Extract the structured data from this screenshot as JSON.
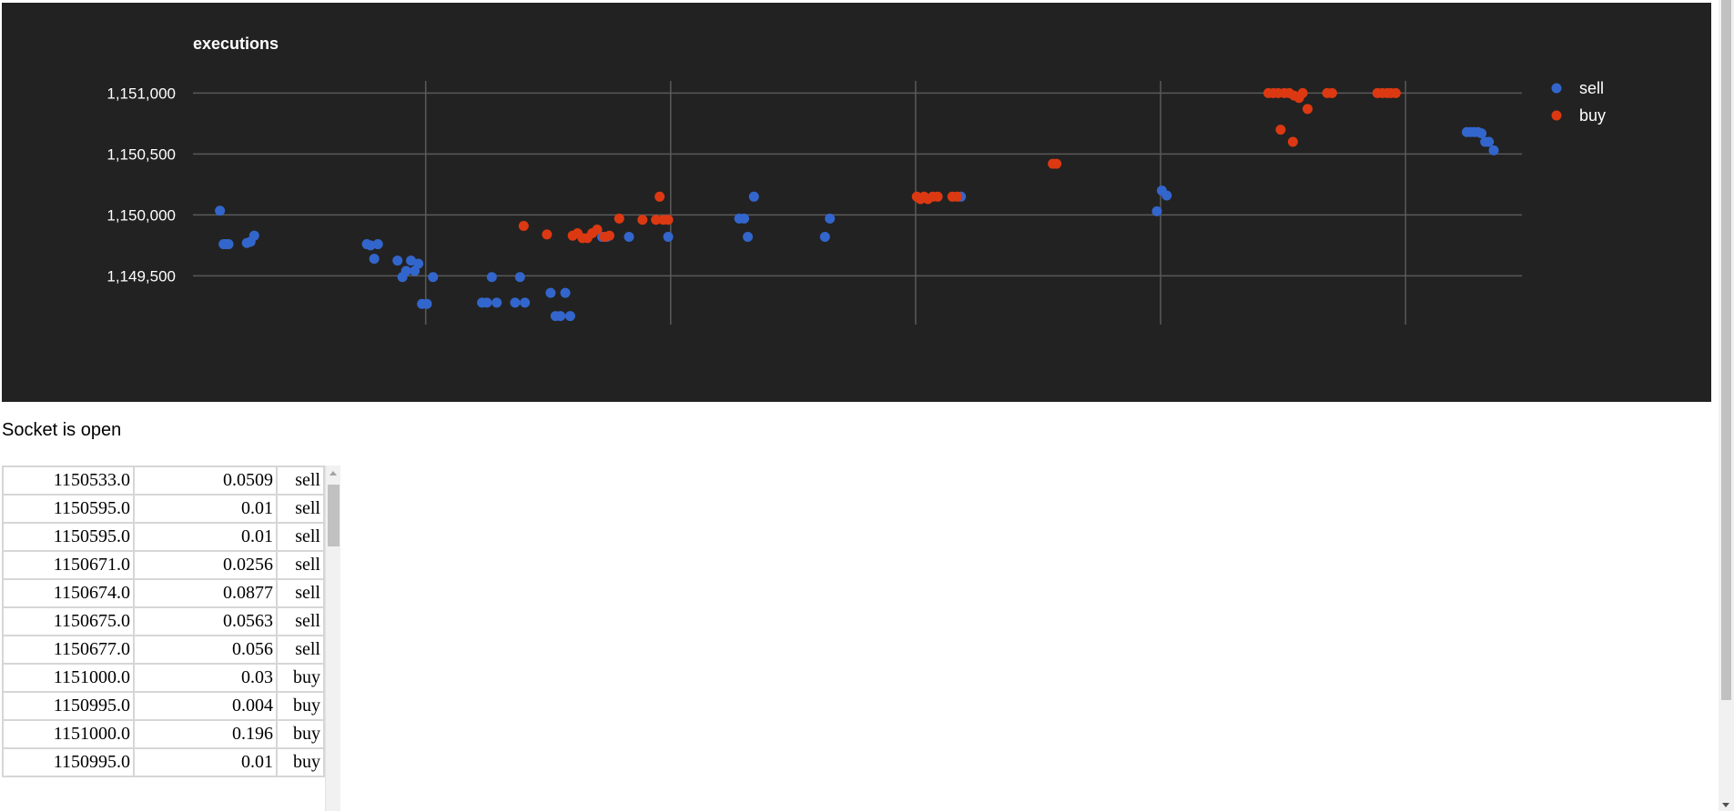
{
  "chart_data": {
    "type": "scatter",
    "title": "executions",
    "xlabel": "",
    "ylabel": "",
    "ylim": [
      1149100,
      1151100
    ],
    "yticks": [
      1149500,
      1150000,
      1150500,
      1151000
    ],
    "ytick_labels": [
      "1,149,500",
      "1,150,000",
      "1,150,500",
      "1,151,000"
    ],
    "xlim": [
      0,
      1085
    ],
    "xgrid": [
      190,
      390,
      590,
      790,
      990
    ],
    "grid": true,
    "legend": "top-right",
    "background": "#222222",
    "colors": {
      "sell": "#3366cc",
      "buy": "#dc3912"
    },
    "series": [
      {
        "name": "sell",
        "color": "#3366cc",
        "points": [
          [
            22,
            1150035
          ],
          [
            25,
            1149760
          ],
          [
            27,
            1149760
          ],
          [
            29,
            1149760
          ],
          [
            44,
            1149770
          ],
          [
            47,
            1149780
          ],
          [
            50,
            1149830
          ],
          [
            142,
            1149760
          ],
          [
            145,
            1149750
          ],
          [
            148,
            1149640
          ],
          [
            151,
            1149760
          ],
          [
            167,
            1149625
          ],
          [
            171,
            1149490
          ],
          [
            174,
            1149540
          ],
          [
            178,
            1149625
          ],
          [
            181,
            1149540
          ],
          [
            184,
            1149600
          ],
          [
            187,
            1149270
          ],
          [
            191,
            1149270
          ],
          [
            196,
            1149490
          ],
          [
            236,
            1149280
          ],
          [
            240,
            1149280
          ],
          [
            244,
            1149490
          ],
          [
            248,
            1149280
          ],
          [
            263,
            1149280
          ],
          [
            267,
            1149490
          ],
          [
            271,
            1149280
          ],
          [
            292,
            1149360
          ],
          [
            296,
            1149170
          ],
          [
            300,
            1149170
          ],
          [
            304,
            1149360
          ],
          [
            308,
            1149170
          ],
          [
            334,
            1149820
          ],
          [
            338,
            1149820
          ],
          [
            356,
            1149820
          ],
          [
            388,
            1149820
          ],
          [
            446,
            1149970
          ],
          [
            450,
            1149970
          ],
          [
            453,
            1149820
          ],
          [
            458,
            1150150
          ],
          [
            516,
            1149820
          ],
          [
            520,
            1149970
          ],
          [
            627,
            1150150
          ],
          [
            787,
            1150030
          ],
          [
            791,
            1150200
          ],
          [
            795,
            1150160
          ],
          [
            1040,
            1150680
          ],
          [
            1043,
            1150680
          ],
          [
            1046,
            1150680
          ],
          [
            1049,
            1150680
          ],
          [
            1052,
            1150670
          ],
          [
            1055,
            1150600
          ],
          [
            1058,
            1150600
          ],
          [
            1062,
            1150530
          ]
        ]
      },
      {
        "name": "buy",
        "color": "#dc3912",
        "points": [
          [
            270,
            1149910
          ],
          [
            289,
            1149840
          ],
          [
            310,
            1149830
          ],
          [
            314,
            1149850
          ],
          [
            318,
            1149810
          ],
          [
            322,
            1149810
          ],
          [
            326,
            1149850
          ],
          [
            330,
            1149880
          ],
          [
            336,
            1149820
          ],
          [
            340,
            1149830
          ],
          [
            348,
            1149970
          ],
          [
            367,
            1149960
          ],
          [
            378,
            1149960
          ],
          [
            381,
            1150150
          ],
          [
            384,
            1149960
          ],
          [
            388,
            1149960
          ],
          [
            591,
            1150150
          ],
          [
            594,
            1150130
          ],
          [
            597,
            1150150
          ],
          [
            600,
            1150130
          ],
          [
            604,
            1150150
          ],
          [
            608,
            1150150
          ],
          [
            620,
            1150150
          ],
          [
            624,
            1150150
          ],
          [
            702,
            1150420
          ],
          [
            705,
            1150420
          ],
          [
            878,
            1151000
          ],
          [
            882,
            1151000
          ],
          [
            886,
            1151000
          ],
          [
            888,
            1150700
          ],
          [
            891,
            1151000
          ],
          [
            895,
            1151000
          ],
          [
            898,
            1150600
          ],
          [
            899,
            1150980
          ],
          [
            903,
            1150960
          ],
          [
            906,
            1151000
          ],
          [
            910,
            1150870
          ],
          [
            926,
            1151000
          ],
          [
            930,
            1151000
          ],
          [
            967,
            1151000
          ],
          [
            971,
            1151000
          ],
          [
            975,
            1151000
          ],
          [
            978,
            1151000
          ],
          [
            982,
            1151000
          ]
        ]
      }
    ]
  },
  "status": {
    "text": "Socket is open"
  },
  "executions": [
    {
      "price": "1150533.0",
      "size": "0.0509",
      "side": "sell"
    },
    {
      "price": "1150595.0",
      "size": "0.01",
      "side": "sell"
    },
    {
      "price": "1150595.0",
      "size": "0.01",
      "side": "sell"
    },
    {
      "price": "1150671.0",
      "size": "0.0256",
      "side": "sell"
    },
    {
      "price": "1150674.0",
      "size": "0.0877",
      "side": "sell"
    },
    {
      "price": "1150675.0",
      "size": "0.0563",
      "side": "sell"
    },
    {
      "price": "1150677.0",
      "size": "0.056",
      "side": "sell"
    },
    {
      "price": "1151000.0",
      "size": "0.03",
      "side": "buy"
    },
    {
      "price": "1150995.0",
      "size": "0.004",
      "side": "buy"
    },
    {
      "price": "1151000.0",
      "size": "0.196",
      "side": "buy"
    },
    {
      "price": "1150995.0",
      "size": "0.01",
      "side": "buy"
    }
  ]
}
